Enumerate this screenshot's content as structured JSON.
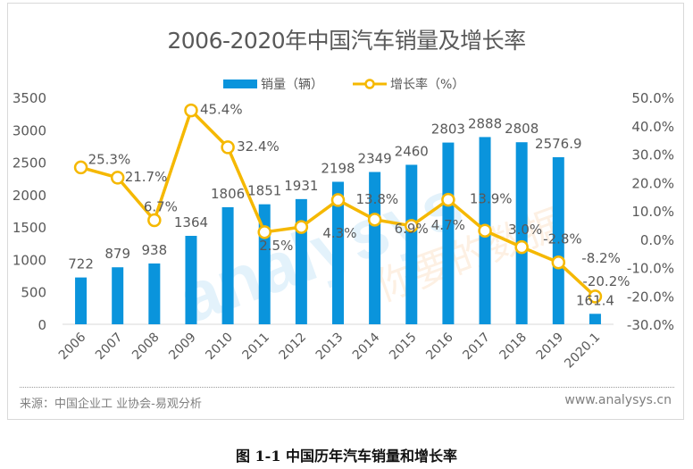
{
  "frame": {
    "source_text": "来源：中国企业工 业协会-易观分析",
    "site_text": "www.analysys.cn",
    "caption": "图 1-1  中国历年汽车销量和增长率"
  },
  "colors": {
    "bar": "#0a94dc",
    "line": "#f5b800",
    "text": "#595959",
    "axis": "#d9d9d9"
  },
  "chart_data": {
    "type": "bar",
    "title": "2006-2020年中国汽车销量及增长率",
    "categories": [
      "2006",
      "2007",
      "2008",
      "2009",
      "2010",
      "2011",
      "2012",
      "2013",
      "2014",
      "2015",
      "2016",
      "2017",
      "2018",
      "2019",
      "2020.1"
    ],
    "series": [
      {
        "name": "销量（辆）",
        "type": "bar",
        "axis": "left",
        "values": [
          722,
          879,
          938,
          1364,
          1806,
          1851,
          1931,
          2198,
          2349,
          2460,
          2803,
          2888,
          2808,
          2576.9,
          161.4
        ],
        "labels": [
          "722",
          "879",
          "938",
          "1364",
          "1806",
          "1851",
          "1931",
          "2198",
          "2349",
          "2460",
          "2803",
          "2888",
          "2808",
          "2576.9",
          "161.4"
        ]
      },
      {
        "name": "增长率（%）",
        "type": "line",
        "axis": "right",
        "values": [
          25.3,
          21.7,
          6.7,
          45.4,
          32.4,
          2.5,
          4.3,
          13.8,
          6.9,
          4.7,
          13.9,
          3.0,
          -2.8,
          -8.2,
          -20.2
        ],
        "labels": [
          "25.3%",
          "21.7%",
          "6.7%",
          "45.4%",
          "32.4%",
          "2.5%",
          "4.3%",
          "13.8%",
          "6.9%",
          "4.7%",
          "13.9%",
          "3.0%",
          "-2.8%",
          "-8.2%",
          "-20.2%"
        ]
      }
    ],
    "y_left": {
      "ylim": [
        0,
        3500
      ],
      "ticks": [
        "0",
        "500",
        "1000",
        "1500",
        "2000",
        "2500",
        "3000",
        "3500"
      ]
    },
    "y_right": {
      "ylim": [
        -30,
        50
      ],
      "ticks": [
        "-30.0%",
        "-20.0%",
        "-10.0%",
        "0.0%",
        "10.0%",
        "20.0%",
        "30.0%",
        "40.0%",
        "50.0%"
      ]
    },
    "xlabel": "",
    "ylabel": "",
    "grid": false,
    "legend": "top-center",
    "watermark": "analysys 易观 你要的数据分析"
  }
}
